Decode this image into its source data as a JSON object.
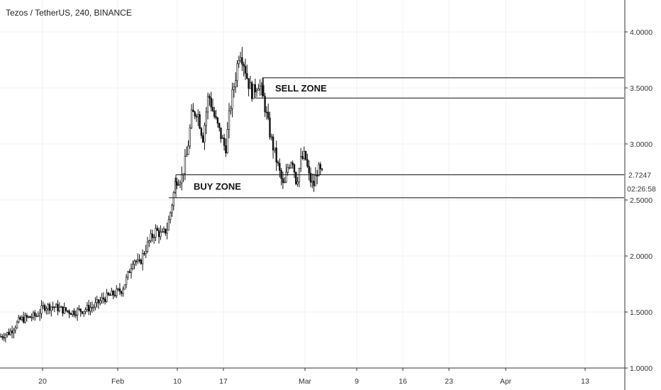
{
  "chart_data": {
    "type": "candlestick",
    "title": "Tezos / TetherUS, 240, BINANCE",
    "ylim": [
      1.0,
      4.0
    ],
    "y_ticks": [
      "1.0000",
      "1.5000",
      "2.0000",
      "2.5000",
      "3.0000",
      "3.5000",
      "4.0000"
    ],
    "x_ticks": [
      "20",
      "Feb",
      "10",
      "17",
      "Mar",
      "9",
      "16",
      "23",
      "Apr",
      "13"
    ],
    "grid": true,
    "price_path": [
      [
        0,
        1.28
      ],
      [
        14,
        1.32
      ],
      [
        28,
        1.43
      ],
      [
        40,
        1.45
      ],
      [
        52,
        1.47
      ],
      [
        62,
        1.55
      ],
      [
        74,
        1.55
      ],
      [
        88,
        1.52
      ],
      [
        102,
        1.5
      ],
      [
        118,
        1.52
      ],
      [
        132,
        1.55
      ],
      [
        146,
        1.62
      ],
      [
        160,
        1.66
      ],
      [
        172,
        1.7
      ],
      [
        180,
        1.82
      ],
      [
        188,
        1.98
      ],
      [
        196,
        1.92
      ],
      [
        204,
        2.05
      ],
      [
        212,
        2.15
      ],
      [
        220,
        2.23
      ],
      [
        228,
        2.18
      ],
      [
        236,
        2.25
      ],
      [
        242,
        2.45
      ],
      [
        248,
        2.68
      ],
      [
        256,
        2.7
      ],
      [
        264,
        2.92
      ],
      [
        270,
        3.25
      ],
      [
        278,
        3.3
      ],
      [
        286,
        3.05
      ],
      [
        294,
        3.45
      ],
      [
        302,
        3.25
      ],
      [
        310,
        3.1
      ],
      [
        318,
        2.95
      ],
      [
        324,
        3.3
      ],
      [
        332,
        3.6
      ],
      [
        338,
        3.85
      ],
      [
        344,
        3.72
      ],
      [
        350,
        3.55
      ],
      [
        356,
        3.45
      ],
      [
        364,
        3.55
      ],
      [
        370,
        3.45
      ],
      [
        376,
        3.25
      ],
      [
        382,
        3.05
      ],
      [
        388,
        2.9
      ],
      [
        394,
        2.75
      ],
      [
        400,
        2.6
      ],
      [
        406,
        2.8
      ],
      [
        412,
        2.88
      ],
      [
        418,
        2.65
      ],
      [
        424,
        2.85
      ],
      [
        430,
        2.9
      ],
      [
        436,
        2.7
      ],
      [
        442,
        2.62
      ],
      [
        448,
        2.78
      ],
      [
        455,
        2.72
      ]
    ],
    "zones": [
      {
        "label": "SELL ZONE",
        "top": 3.59,
        "bottom": 3.41
      },
      {
        "label": "BUY ZONE",
        "top": 2.7247,
        "bottom": 2.52
      }
    ],
    "price_label": "2.7247",
    "countdown_label": "02:26:58"
  }
}
